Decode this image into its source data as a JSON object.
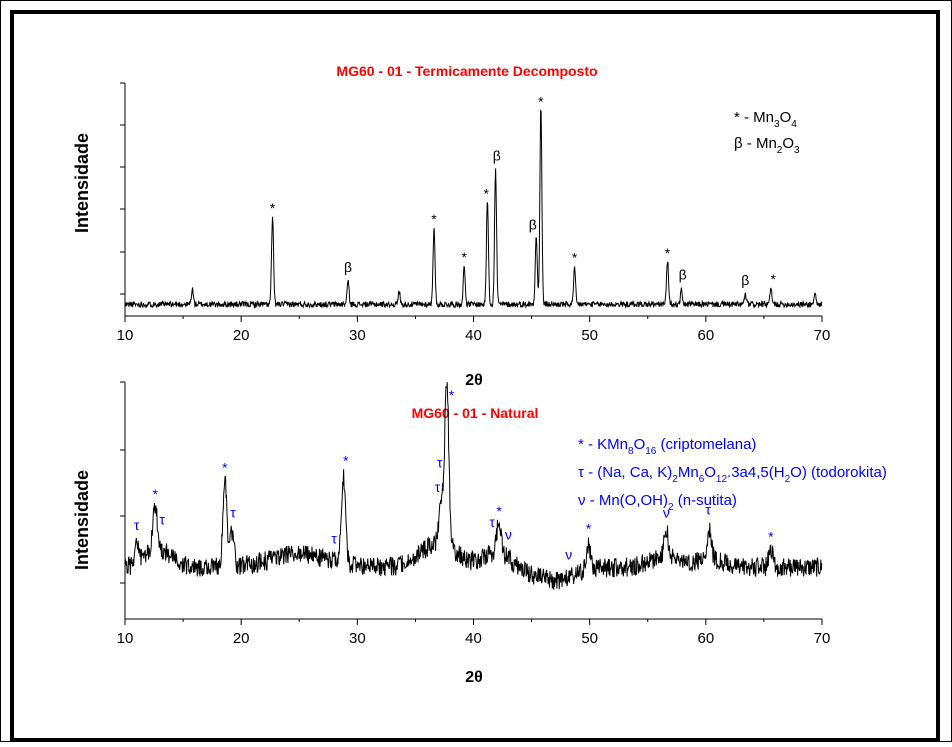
{
  "colors": {
    "title": "#ff0000",
    "natural_annotation": "#0000ff",
    "black": "#000000"
  },
  "chart_data": [
    {
      "type": "line",
      "title": "MG60 - 01 - Termicamente Decomposto",
      "xlabel": "2θ",
      "ylabel": "Intensidade",
      "xlim": [
        10,
        70
      ],
      "x_ticks": [
        10,
        20,
        30,
        40,
        50,
        60,
        70
      ],
      "x_tick_labels": [
        "10",
        "20",
        "30",
        "40",
        "50",
        "60",
        "70"
      ],
      "y_tick_labels_shown": false,
      "grid": false,
      "baseline": 1.0,
      "noise": 0.25,
      "series": [
        {
          "peaks": [
            {
              "x": 15.8,
              "y": 1.3
            },
            {
              "x": 22.7,
              "y": 7.5
            },
            {
              "x": 29.2,
              "y": 2.0
            },
            {
              "x": 33.6,
              "y": 1.1
            },
            {
              "x": 36.6,
              "y": 6.5
            },
            {
              "x": 39.2,
              "y": 3.2
            },
            {
              "x": 41.2,
              "y": 9.0
            },
            {
              "x": 41.9,
              "y": 11.5
            },
            {
              "x": 45.4,
              "y": 6.0
            },
            {
              "x": 45.8,
              "y": 17.0
            },
            {
              "x": 48.7,
              "y": 3.0
            },
            {
              "x": 56.7,
              "y": 3.8
            },
            {
              "x": 57.9,
              "y": 1.2
            },
            {
              "x": 63.4,
              "y": 0.8
            },
            {
              "x": 65.6,
              "y": 1.3
            },
            {
              "x": 69.4,
              "y": 0.9
            }
          ]
        }
      ],
      "annotations": [
        {
          "text": "*",
          "x": 22.7
        },
        {
          "text": "β",
          "x": 29.2
        },
        {
          "text": "*",
          "x": 36.6
        },
        {
          "text": "*",
          "x": 39.2
        },
        {
          "text": "*",
          "x": 41.1
        },
        {
          "text": "β",
          "x": 42.0
        },
        {
          "text": "β",
          "x": 45.1
        },
        {
          "text": "*",
          "x": 45.8
        },
        {
          "text": "*",
          "x": 48.7
        },
        {
          "text": "*",
          "x": 56.7
        },
        {
          "text": "β",
          "x": 58.0
        },
        {
          "text": "β",
          "x": 63.4
        },
        {
          "text": "*",
          "x": 65.8
        }
      ],
      "legend": [
        {
          "label": "* - Mn",
          "sub1": "3",
          "mid": "O",
          "sub2": "4"
        },
        {
          "label": "β - Mn",
          "sub1": "2",
          "mid": "O",
          "sub2": "3"
        }
      ]
    },
    {
      "type": "line",
      "title": "MG60 - 01 - Natural",
      "xlabel": "2θ",
      "ylabel": "Intensidade",
      "xlim": [
        10,
        70
      ],
      "x_ticks": [
        10,
        20,
        30,
        40,
        50,
        60,
        70
      ],
      "x_tick_labels": [
        "10",
        "20",
        "30",
        "40",
        "50",
        "60",
        "70"
      ],
      "y_tick_labels_shown": false,
      "grid": false,
      "baseline": 2.4,
      "noise": 0.45,
      "series": [
        {
          "peaks": [
            {
              "x": 11.0,
              "y": 1.0
            },
            {
              "x": 12.6,
              "y": 2.0
            },
            {
              "x": 18.6,
              "y": 4.0
            },
            {
              "x": 19.2,
              "y": 1.5
            },
            {
              "x": 28.8,
              "y": 4.0
            },
            {
              "x": 37.2,
              "y": 2.0
            },
            {
              "x": 37.7,
              "y": 7.6
            },
            {
              "x": 42.2,
              "y": 1.6
            },
            {
              "x": 49.9,
              "y": 1.2
            },
            {
              "x": 56.6,
              "y": 1.2
            },
            {
              "x": 60.3,
              "y": 1.4
            },
            {
              "x": 65.6,
              "y": 0.9
            }
          ]
        }
      ],
      "annotations": [
        {
          "text": "τ",
          "x": 11.0
        },
        {
          "text": "*",
          "x": 12.6
        },
        {
          "text": "τ",
          "x": 13.2
        },
        {
          "text": "*",
          "x": 18.6
        },
        {
          "text": "τ",
          "x": 19.3
        },
        {
          "text": "τ",
          "x": 28.0
        },
        {
          "text": "*",
          "x": 29.0
        },
        {
          "text": "τ",
          "x": 36.9
        },
        {
          "text": "τ",
          "x": 37.1
        },
        {
          "text": "*",
          "x": 38.1
        },
        {
          "text": "τ",
          "x": 41.6
        },
        {
          "text": "*",
          "x": 42.2
        },
        {
          "text": "ν",
          "x": 43.0
        },
        {
          "text": "ν",
          "x": 48.2
        },
        {
          "text": "*",
          "x": 49.9
        },
        {
          "text": "ν",
          "x": 56.6
        },
        {
          "text": "τ",
          "x": 60.2
        },
        {
          "text": "*",
          "x": 65.6
        }
      ],
      "legend_lines": [
        [
          {
            "t": "* - KMn"
          },
          {
            "t": "8",
            "s": true
          },
          {
            "t": "O"
          },
          {
            "t": "16",
            "s": true
          },
          {
            "t": " (criptomelana)"
          }
        ],
        [
          {
            "t": "τ - (Na, Ca, K)"
          },
          {
            "t": "2",
            "s": true
          },
          {
            "t": "Mn"
          },
          {
            "t": "6",
            "s": true
          },
          {
            "t": "O"
          },
          {
            "t": "12",
            "s": true
          },
          {
            "t": ".3a4,5(H"
          },
          {
            "t": "2",
            "s": true
          },
          {
            "t": "O) (todorokita)"
          }
        ],
        [
          {
            "t": "ν - Mn(O,OH)"
          },
          {
            "t": "2",
            "s": true
          },
          {
            "t": " (n-sutita)"
          }
        ]
      ]
    }
  ]
}
